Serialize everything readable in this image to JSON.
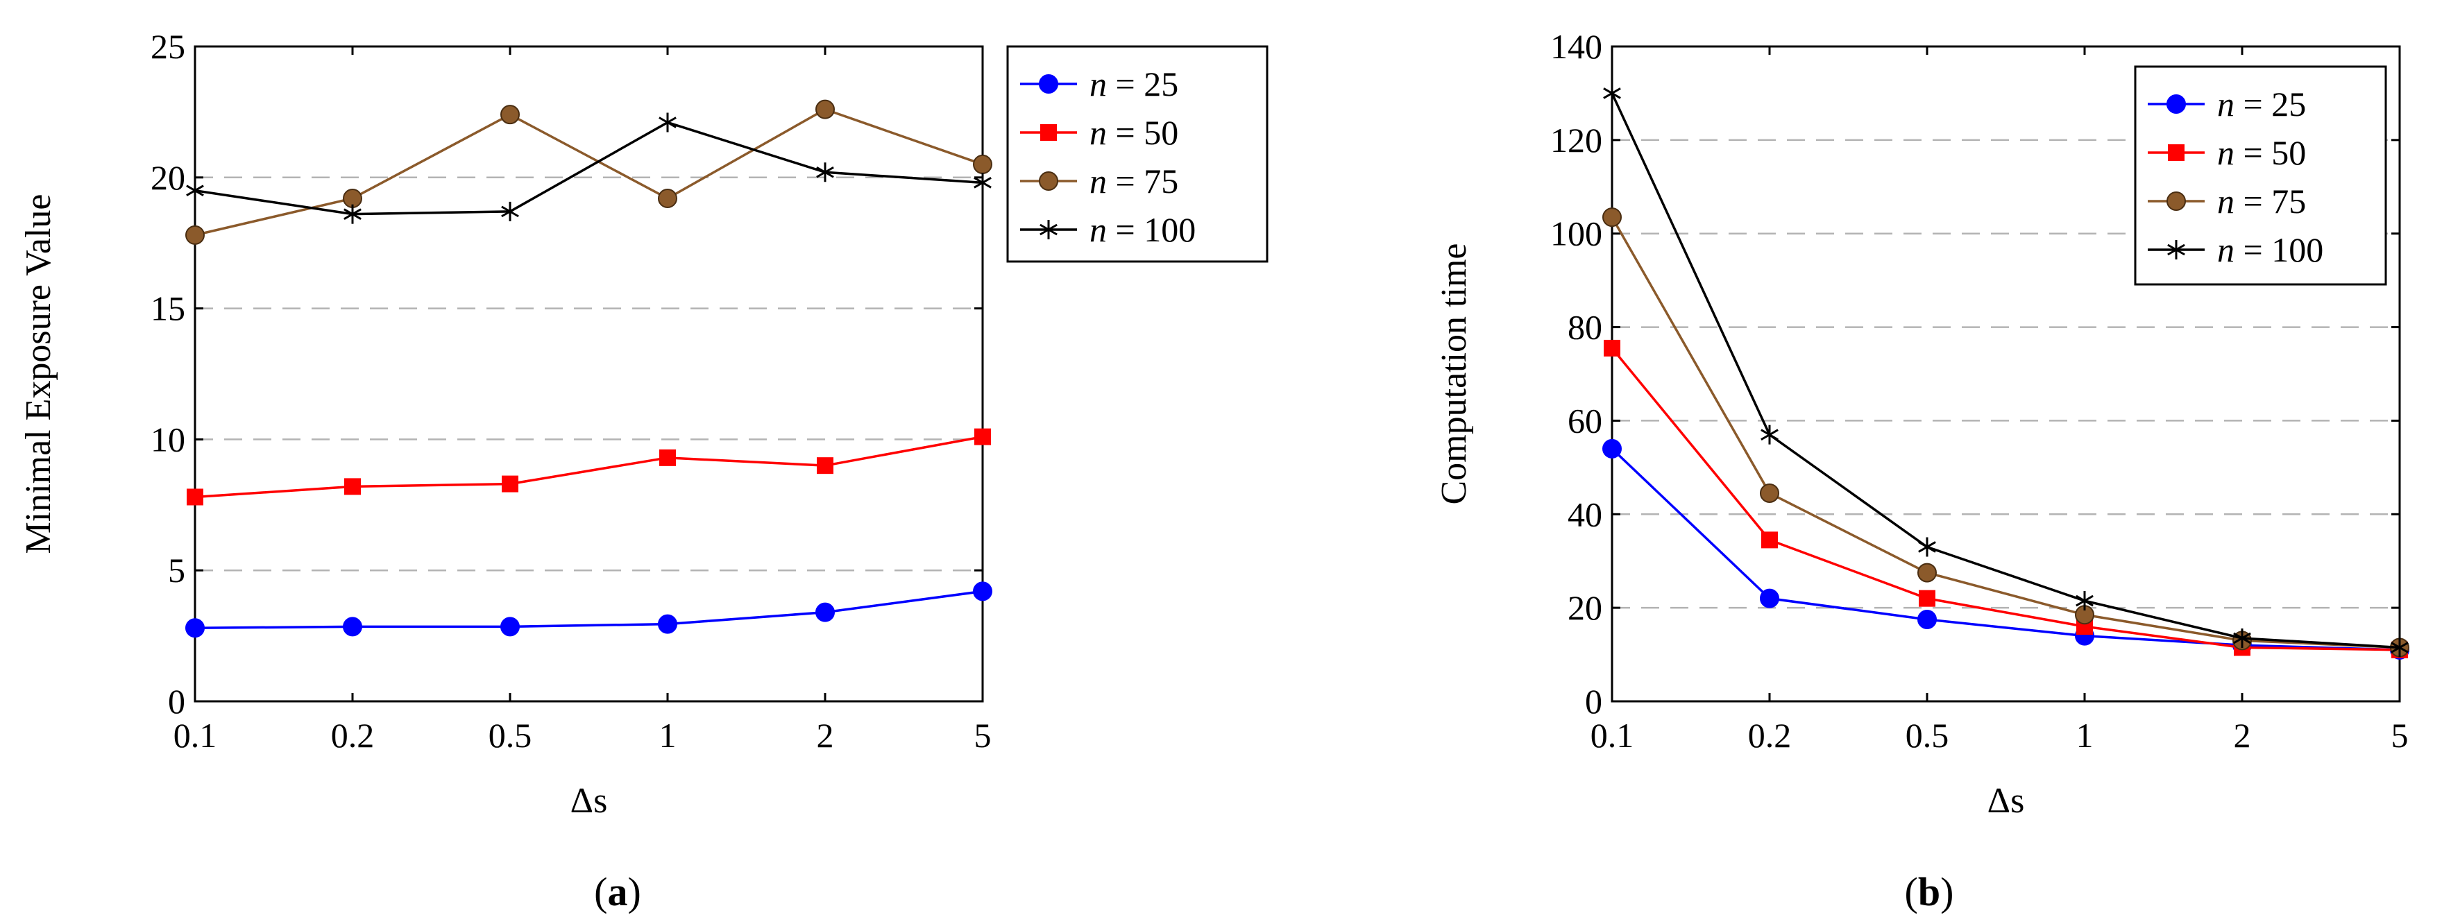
{
  "chart_data": [
    {
      "type": "line",
      "panel_label": "a",
      "x_categories": [
        "0.1",
        "0.2",
        "0.5",
        "1",
        "2",
        "5"
      ],
      "xlabel": "Δs",
      "ylabel": "Minimal Exposure Value",
      "ylim": [
        0,
        25
      ],
      "yticks": [
        0,
        5,
        10,
        15,
        20,
        25
      ],
      "grid": "horizontal dashed",
      "legend_position": "outside top-right",
      "series": [
        {
          "name": "n = 25",
          "symbol": "n",
          "value_label": "25",
          "color": "#0000ff",
          "marker": "circle",
          "values": [
            2.8,
            2.85,
            2.85,
            2.95,
            3.4,
            4.2
          ]
        },
        {
          "name": "n = 50",
          "symbol": "n",
          "value_label": "50",
          "color": "#ff0000",
          "marker": "square",
          "values": [
            7.8,
            8.2,
            8.3,
            9.3,
            9.0,
            10.1
          ]
        },
        {
          "name": "n = 75",
          "symbol": "n",
          "value_label": "75",
          "color": "#8b5a2b",
          "marker": "circle",
          "values": [
            17.8,
            19.2,
            22.4,
            19.2,
            22.6,
            20.5
          ]
        },
        {
          "name": "n = 100",
          "symbol": "n",
          "value_label": "100",
          "color": "#000000",
          "marker": "star",
          "values": [
            19.5,
            18.6,
            18.7,
            22.1,
            20.2,
            19.8
          ]
        }
      ]
    },
    {
      "type": "line",
      "panel_label": "b",
      "x_categories": [
        "0.1",
        "0.2",
        "0.5",
        "1",
        "2",
        "5"
      ],
      "xlabel": "Δs",
      "ylabel": "Computation time",
      "ylim": [
        0,
        140
      ],
      "yticks": [
        0,
        20,
        40,
        60,
        80,
        100,
        120,
        140
      ],
      "grid": "horizontal dashed",
      "legend_position": "inside top-right",
      "series": [
        {
          "name": "n = 25",
          "symbol": "n",
          "value_label": "25",
          "color": "#0000ff",
          "marker": "circle",
          "values": [
            54,
            22,
            17.5,
            14,
            12,
            11
          ]
        },
        {
          "name": "n = 50",
          "symbol": "n",
          "value_label": "50",
          "color": "#ff0000",
          "marker": "square",
          "values": [
            75.5,
            34.5,
            22,
            16,
            11.5,
            11
          ]
        },
        {
          "name": "n = 75",
          "symbol": "n",
          "value_label": "75",
          "color": "#8b5a2b",
          "marker": "circle",
          "values": [
            103.5,
            44.5,
            27.5,
            18.5,
            13,
            11.5
          ]
        },
        {
          "name": "n = 100",
          "symbol": "n",
          "value_label": "100",
          "color": "#000000",
          "marker": "star",
          "values": [
            130,
            57,
            33,
            21.5,
            13.5,
            11.5
          ]
        }
      ]
    }
  ]
}
